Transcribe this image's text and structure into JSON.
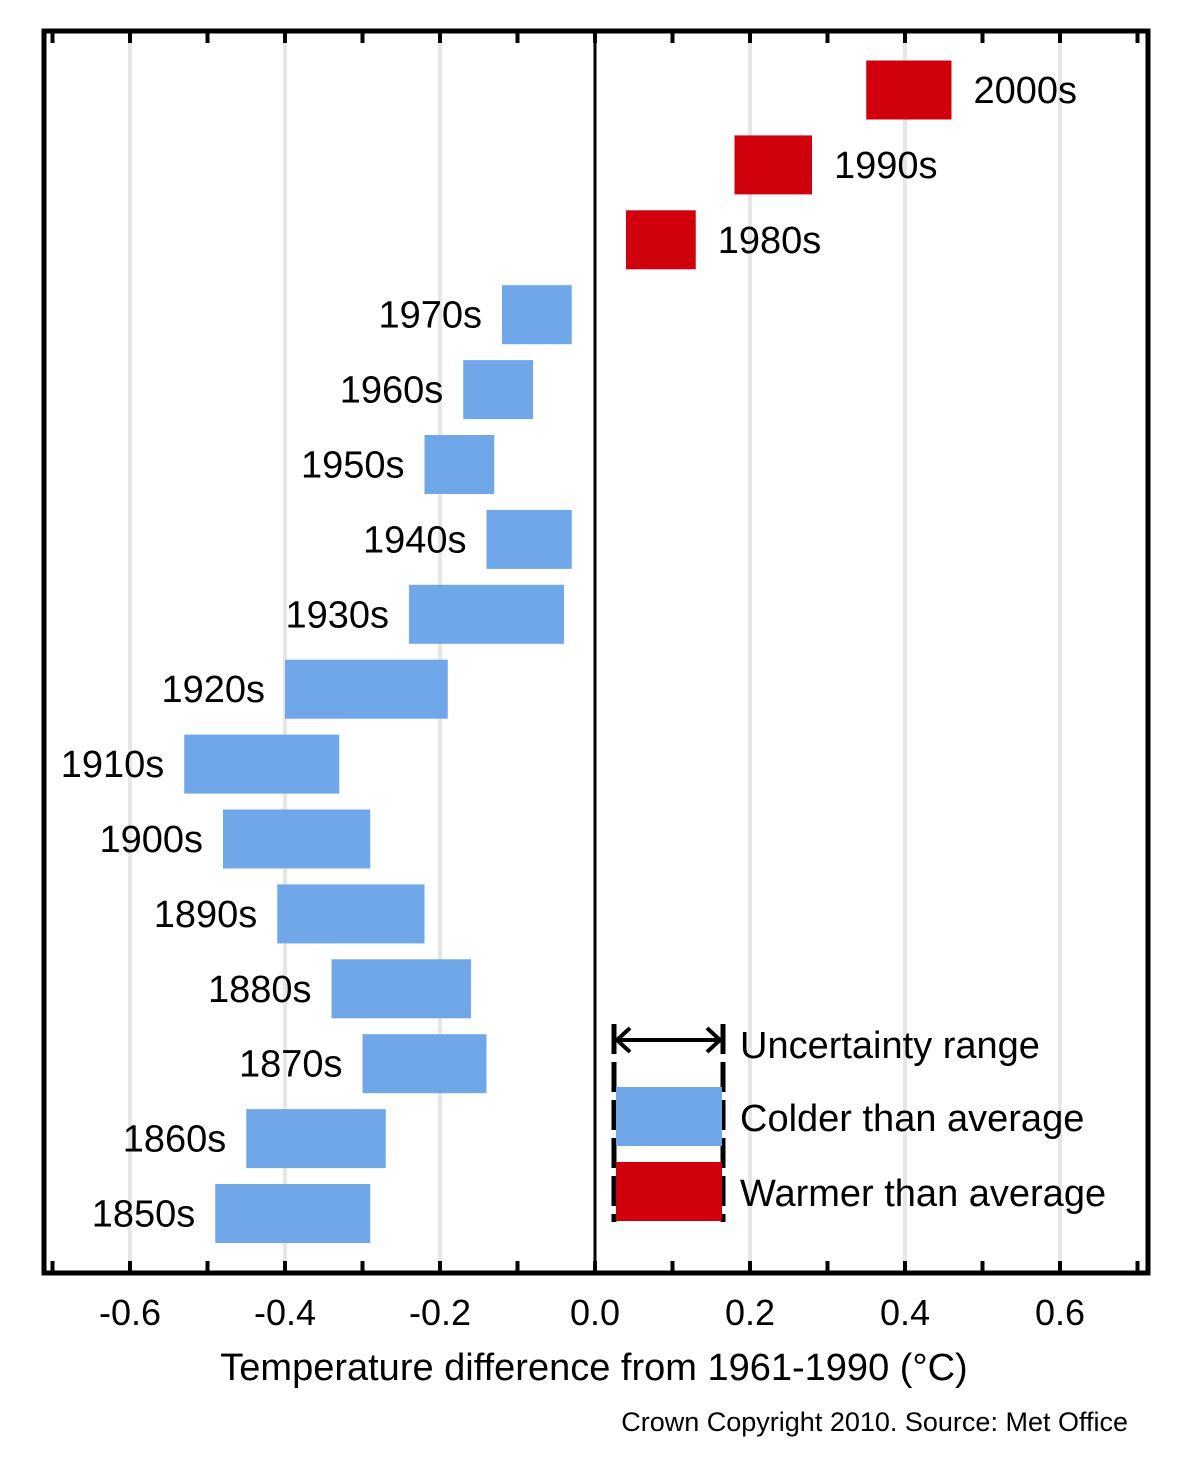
{
  "chart_data": {
    "type": "bar",
    "subtype": "floating-range",
    "xlabel": "Temperature difference from 1961-1990 (°C)",
    "xlim": [
      -0.71,
      0.71
    ],
    "xticks": [
      -0.6,
      -0.4,
      -0.2,
      0.0,
      0.2,
      0.4,
      0.6
    ],
    "xtick_labels": [
      "-0.6",
      "-0.4",
      "-0.2",
      "0.0",
      "0.2",
      "0.4",
      "0.6"
    ],
    "grid": true,
    "legend_position": "bottom-right",
    "categories": [
      "2000s",
      "1990s",
      "1980s",
      "1970s",
      "1960s",
      "1950s",
      "1940s",
      "1930s",
      "1920s",
      "1910s",
      "1900s",
      "1890s",
      "1880s",
      "1870s",
      "1860s",
      "1850s"
    ],
    "ranges": [
      [
        0.35,
        0.46
      ],
      [
        0.18,
        0.28
      ],
      [
        0.04,
        0.13
      ],
      [
        -0.12,
        -0.03
      ],
      [
        -0.17,
        -0.08
      ],
      [
        -0.22,
        -0.13
      ],
      [
        -0.14,
        -0.03
      ],
      [
        -0.24,
        -0.04
      ],
      [
        -0.4,
        -0.19
      ],
      [
        -0.53,
        -0.33
      ],
      [
        -0.48,
        -0.29
      ],
      [
        -0.41,
        -0.22
      ],
      [
        -0.34,
        -0.16
      ],
      [
        -0.3,
        -0.14
      ],
      [
        -0.45,
        -0.27
      ],
      [
        -0.49,
        -0.29
      ]
    ],
    "series": [
      {
        "name": "Colder than average",
        "color": "#6fa7e8"
      },
      {
        "name": "Warmer than average",
        "color": "#d0000c"
      }
    ],
    "legend": {
      "uncertainty_label": "Uncertainty range",
      "colder_label": "Colder than average",
      "warmer_label": "Warmer than average"
    },
    "colors": {
      "colder": "#6fa7e8",
      "warmer": "#d0000c",
      "grid": "#e6e6e6",
      "axis": "#000000"
    },
    "credit": "Crown Copyright 2010. Source: Met Office"
  }
}
